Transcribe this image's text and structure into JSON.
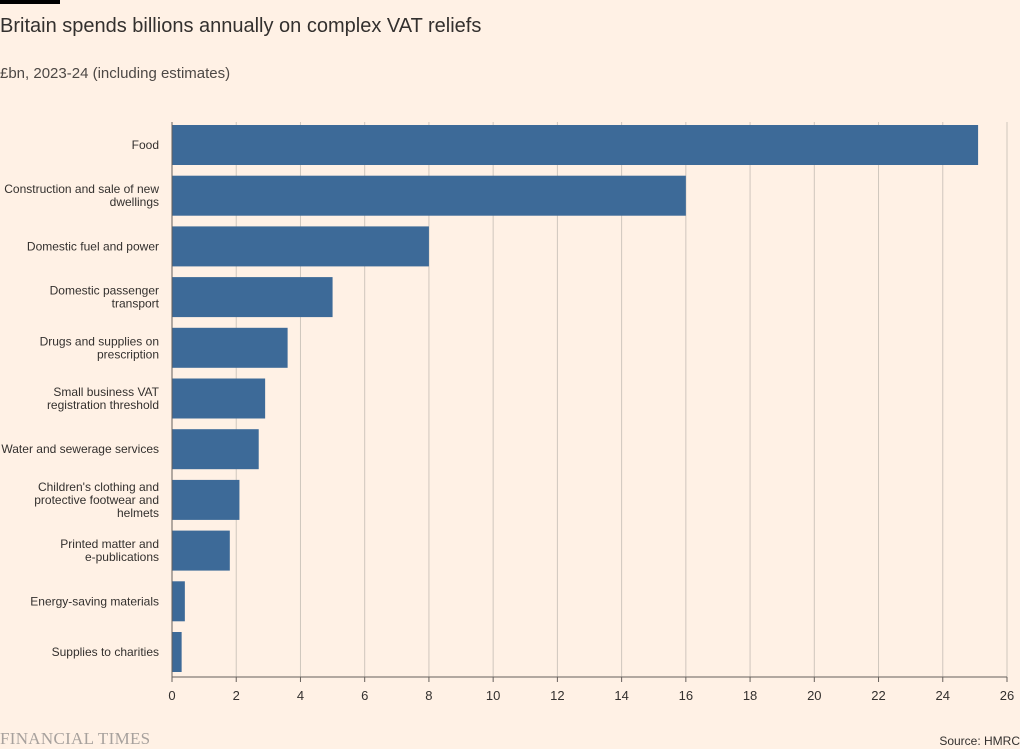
{
  "title": "Britain spends billions annually on complex VAT reliefs",
  "subtitle": "£bn, 2023-24 (including estimates)",
  "source": "Source: HMRC",
  "brand": "FINANCIAL TIMES",
  "colors": {
    "background": "#fff1e5",
    "bar": "#3d6a98",
    "gridline": "#cfc6bd",
    "axis": "#66605c",
    "text": "#33302e"
  },
  "chart_data": {
    "type": "bar",
    "orientation": "horizontal",
    "categories": [
      [
        "Food"
      ],
      [
        "Construction and sale of new",
        "dwellings"
      ],
      [
        "Domestic fuel and power"
      ],
      [
        "Domestic passenger",
        "transport"
      ],
      [
        "Drugs and supplies on",
        "prescription"
      ],
      [
        "Small business VAT",
        "registration threshold"
      ],
      [
        "Water and sewerage services"
      ],
      [
        "Children's clothing and",
        "protective footwear and",
        "helmets"
      ],
      [
        "Printed matter and",
        "e-publications"
      ],
      [
        "Energy-saving materials"
      ],
      [
        "Supplies to charities"
      ]
    ],
    "values": [
      25.1,
      16.0,
      8.0,
      5.0,
      3.6,
      2.9,
      2.7,
      2.1,
      1.8,
      0.4,
      0.3
    ],
    "xlim": [
      0,
      26
    ],
    "xticks": [
      "0",
      "2",
      "4",
      "6",
      "8",
      "10",
      "12",
      "14",
      "16",
      "18",
      "20",
      "22",
      "24",
      "26"
    ],
    "grid": true,
    "title": "Britain spends billions annually on complex VAT reliefs",
    "xlabel": "",
    "ylabel": ""
  }
}
